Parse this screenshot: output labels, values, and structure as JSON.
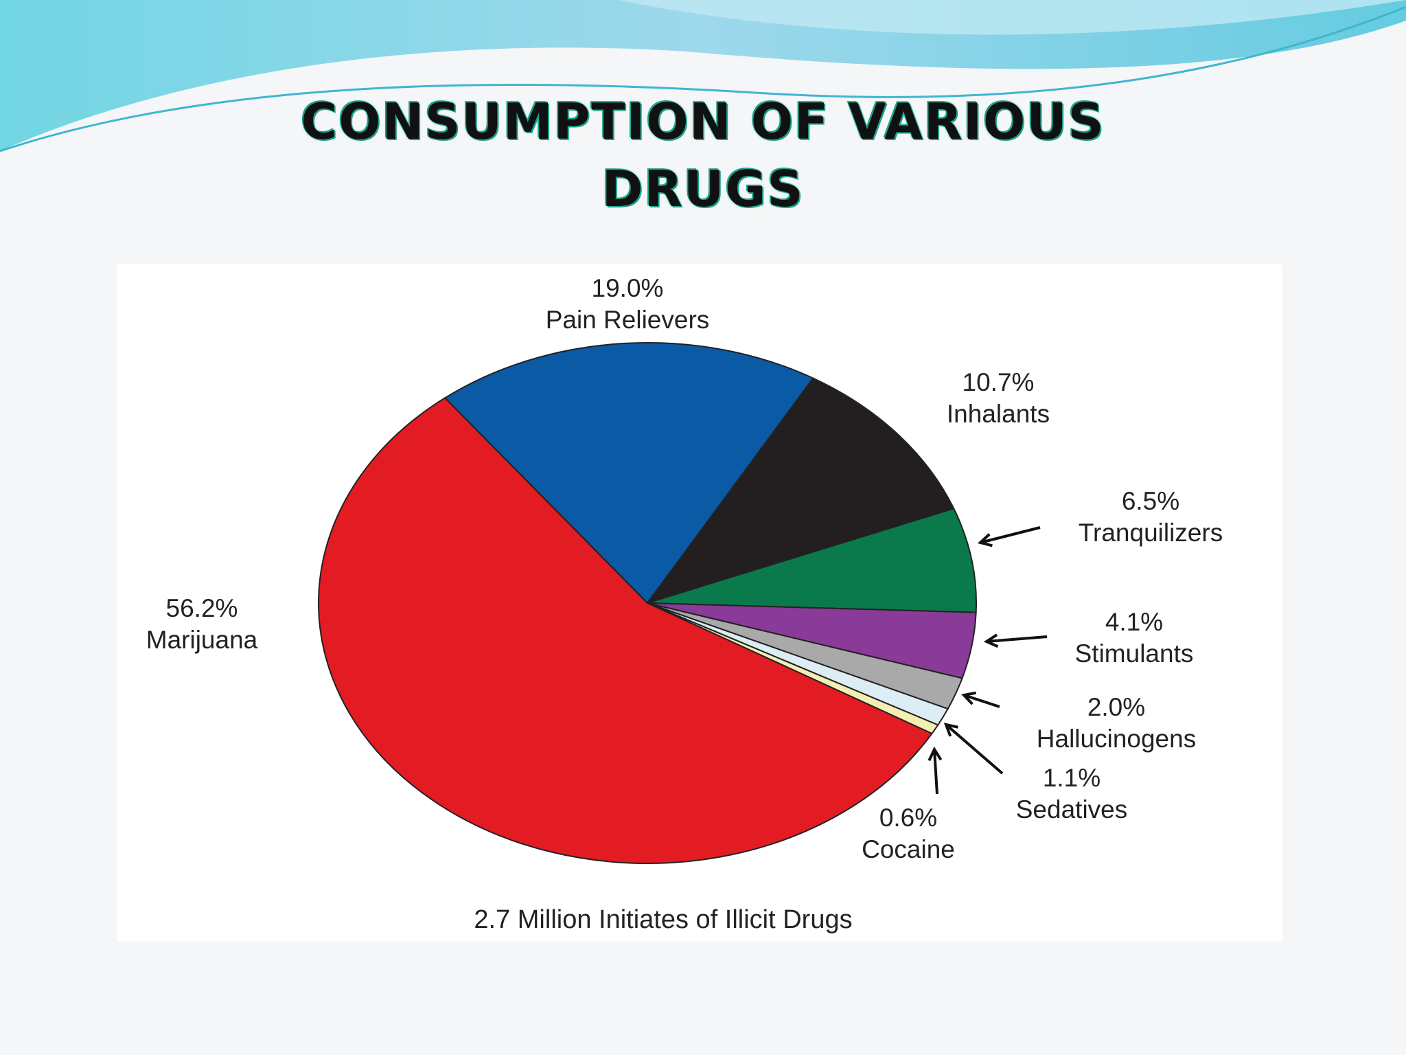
{
  "chart_data": {
    "type": "pie",
    "title": "CONSUMPTION OF VARIOUS DRUGS",
    "subtitle": "2.7 Million Initiates of Illicit Drugs",
    "categories": [
      "Pain Relievers",
      "Inhalants",
      "Tranquilizers",
      "Stimulants",
      "Hallucinogens",
      "Sedatives",
      "Cocaine",
      "Marijuana"
    ],
    "values": [
      19.0,
      10.7,
      6.5,
      4.1,
      2.0,
      1.1,
      0.6,
      56.2
    ],
    "value_labels": [
      "19.0%",
      "10.7%",
      "6.5%",
      "4.1%",
      "2.0%",
      "1.1%",
      "0.6%",
      "56.2%"
    ],
    "colors": [
      "#0b5aa6",
      "#231f20",
      "#0a7a4c",
      "#8a3a98",
      "#a9a9a9",
      "#dcedf5",
      "#f4eeb2",
      "#e31b23"
    ]
  }
}
